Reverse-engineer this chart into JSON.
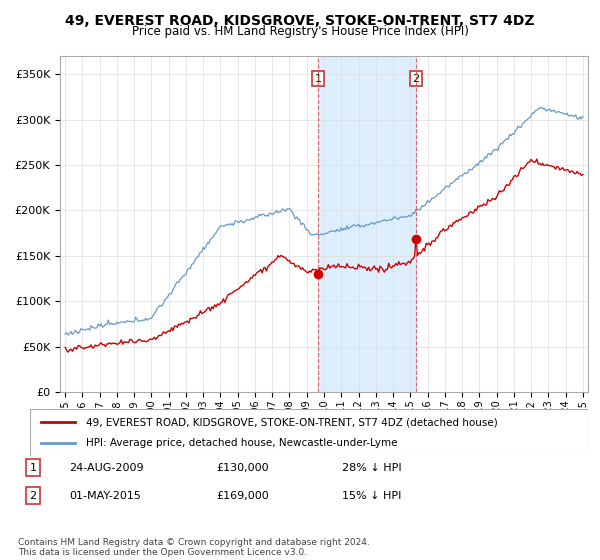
{
  "title": "49, EVEREST ROAD, KIDSGROVE, STOKE-ON-TRENT, ST7 4DZ",
  "subtitle": "Price paid vs. HM Land Registry's House Price Index (HPI)",
  "ylim": [
    0,
    370000
  ],
  "yticks": [
    0,
    50000,
    100000,
    150000,
    200000,
    250000,
    300000,
    350000
  ],
  "sale1_date": "24-AUG-2009",
  "sale1_price": 130000,
  "sale1_pct": "28% ↓ HPI",
  "sale1_x": 2009.65,
  "sale2_date": "01-MAY-2015",
  "sale2_price": 169000,
  "sale2_pct": "15% ↓ HPI",
  "sale2_x": 2015.33,
  "legend_label1": "49, EVEREST ROAD, KIDSGROVE, STOKE-ON-TRENT, ST7 4DZ (detached house)",
  "legend_label2": "HPI: Average price, detached house, Newcastle-under-Lyme",
  "footnote": "Contains HM Land Registry data © Crown copyright and database right 2024.\nThis data is licensed under the Open Government Licence v3.0.",
  "line_color_red": "#cc0000",
  "line_color_blue": "#6699cc",
  "shading_color": "#ddeeff",
  "vline_color": "#dd4444",
  "xlim_left": 1994.7,
  "xlim_right": 2025.3
}
